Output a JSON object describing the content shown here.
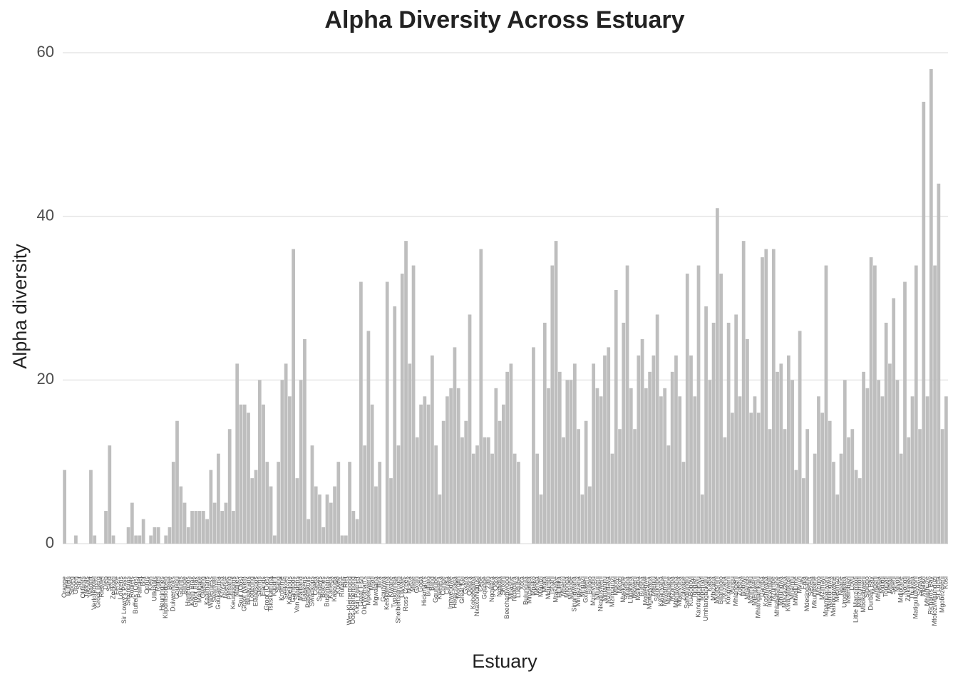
{
  "chart_data": {
    "type": "bar",
    "title": "Alpha Diversity Across Estuary",
    "x_label": "Estuary",
    "y_label": "Alpha diversity",
    "color": "#bebebe",
    "grid": true,
    "ylim": [
      0,
      60
    ],
    "yticks": [
      0,
      20,
      40,
      60
    ],
    "categories": [
      "Orange",
      "Buffels",
      "Spoeg",
      "Groen",
      "Sout",
      "Olifants",
      "Jakkals",
      "Wadrift",
      "Verlorenvlei",
      "Groot Berg",
      "Rietvlei",
      "Diep",
      "Sand",
      "Zeekoei",
      "Eerste",
      "Lourens",
      "Sir Lowry's Pass",
      "Steenbras",
      "Rooiels",
      "Buffels (Oos)",
      "Palmiet",
      "Bot",
      "Onrus",
      "Klein",
      "Uilkraals",
      "Ratel",
      "Heuningnes",
      "Klipdrifsfontein",
      "Breë",
      "Duiwenhoks",
      "Goukou",
      "Gourits",
      "Blinde",
      "Hartenbos",
      "Klein Brak",
      "Groot Brak",
      "Maalgate",
      "Gwaing",
      "Kaaimans",
      "Wilderness",
      "Swartvlei",
      "Goukamma",
      "Knysna",
      "Noetsie",
      "Piesang",
      "Keurbooms",
      "Matjies",
      "Sout (Oos)",
      "Groot (Wes)",
      "Bloukrans",
      "Lottering",
      "Elandsbos",
      "Storms",
      "Elands",
      "Groot (Oos)",
      "Tsitsikamma",
      "Klipdrif",
      "Slang",
      "Kromme",
      "Seekoei",
      "Kabeljous",
      "Gamtoos",
      "Van Stadens",
      "Maitland",
      "Baakens",
      "Papenkuils",
      "Swartkops",
      "Coega",
      "Sundays",
      "Boknes",
      "Bushmans",
      "Kariega",
      "Kasouga",
      "Kowie",
      "Rufane",
      "Riet",
      "Wes-Kleinemond",
      "Oos-Kleinemond",
      "Klein Palmiet",
      "Great Fish",
      "Old Woman's",
      "Mpekweni",
      "Mtati",
      "Mgwalana",
      "Bira",
      "Gqutywa",
      "Keiskamma",
      "Kiwane",
      "Tyolomnqa",
      "Shelbertsstroom",
      "Lilyvale",
      "Ross' Creek",
      "Ncera",
      "Mlele",
      "Gxulu",
      "Goda",
      "Hickman's",
      "Buffalo",
      "Blind",
      "Gqunube",
      "Kwelera",
      "Cunge",
      "Cintsa",
      "Imtwendwe",
      "Haga-haga",
      "Morgan",
      "Great Kei",
      "Gxara",
      "Qolora",
      "Kobonqaba",
      "Nxaxo/Ngqusi",
      "Cebe",
      "Gqunqe",
      "Zalu",
      "Ngqwara",
      "Qora",
      "Ngadla",
      "Shixini",
      "Beechamwood",
      "Mbashe",
      "Nqabara",
      "Ludube",
      "Xora",
      "Bulungula",
      "Mncwasa",
      "Mpako",
      "Nenga",
      "Mapuzi",
      "Mtata",
      "Mdumbi",
      "Tshani",
      "Mtakatye",
      "Hluleka",
      "Mnenu",
      "Mtonga",
      "Mpande",
      "Sinangwana",
      "Mngazana",
      "Mngazi",
      "Gxwaleni",
      "Bulolo",
      "Mzimvubu",
      "Ntlupeni",
      "Nkodusweni",
      "Mntafufu",
      "Mzintlava",
      "Mzimpunzi",
      "Mbotyi",
      "Mkozi",
      "Myekane",
      "Sitatsha",
      "Lupatana",
      "Mkweni",
      "Msikaba",
      "Butsha",
      "Mgwegwe",
      "Mgwetyana",
      "Mtentu",
      "Sikombe",
      "Kwanyana",
      "Mnyameni",
      "Mpahlane",
      "Mzamba",
      "Mtentwana",
      "Mtamvuna",
      "Zolwane",
      "Sandlundlu",
      "Ku-Boboyi",
      "Tongazi",
      "Kandandhlovu",
      "Mpenjati",
      "Umhlangankulu",
      "Kaba",
      "Mbizana",
      "Mvutshini",
      "Bilanhlolo",
      "Uvuzana",
      "Kongweni",
      "Vungu",
      "Mhlangeni",
      "Zotsha",
      "Boboyi",
      "Mbango",
      "Mzimkulu",
      "Mtentweni",
      "Mhlangamkulu",
      "Damba",
      "Koshwana",
      "Intshambili",
      "Mzumbe",
      "Mhlabatshane",
      "Mhlungwa",
      "Mfazazana",
      "Kwa-Makosi",
      "Mnamfu",
      "Mtwalume",
      "Mvuzi",
      "Fafa",
      "Mdesingane",
      "Sezela",
      "Mkumbane",
      "Mzinto",
      "Mzimayi",
      "Mpambanyoni",
      "Mahlongwa",
      "Mahlongwane",
      "Mkomazi",
      "Ngane",
      "Umgababa",
      "Msimbazi",
      "Lovu",
      "Little Manzimtoti",
      "Manzimtoti",
      "Mbokodweni",
      "Sipingo",
      "Durban Bay",
      "Mgeni",
      "Mhlanga",
      "Mdloti",
      "Tongati",
      "Mhlali",
      "Seteni",
      "Mvoti",
      "Mdlotane",
      "Nonoti",
      "Zinkwasi",
      "Thukela",
      "Matigulu/Nyoni",
      "Siyaya",
      "Mlalazi",
      "Mhlathuze",
      "Richards Bay",
      "Mfolozi/Msunduzi",
      "St Lucia",
      "Mgobezeleni",
      "Kosi"
    ],
    "values": [
      9,
      0,
      0,
      1,
      0,
      0,
      0,
      9,
      1,
      0,
      0,
      4,
      12,
      1,
      0,
      0,
      0,
      2,
      5,
      1,
      1,
      3,
      0,
      1,
      2,
      2,
      0,
      1,
      2,
      10,
      15,
      7,
      5,
      2,
      4,
      4,
      4,
      4,
      3,
      9,
      5,
      11,
      4,
      5,
      14,
      4,
      22,
      17,
      17,
      16,
      8,
      9,
      20,
      17,
      10,
      7,
      1,
      10,
      20,
      22,
      18,
      36,
      8,
      20,
      25,
      3,
      12,
      7,
      6,
      2,
      6,
      5,
      7,
      10,
      1,
      1,
      10,
      4,
      3,
      32,
      12,
      26,
      17,
      7,
      10,
      0,
      32,
      8,
      29,
      12,
      33,
      37,
      22,
      34,
      13,
      17,
      18,
      17,
      23,
      12,
      6,
      15,
      18,
      19,
      24,
      19,
      13,
      15,
      28,
      11,
      12,
      36,
      13,
      13,
      11,
      19,
      15,
      17,
      21,
      22,
      11,
      10,
      0,
      0,
      0,
      24,
      11,
      6,
      27,
      19,
      34,
      37,
      21,
      13,
      20,
      20,
      22,
      14,
      6,
      15,
      7,
      22,
      19,
      18,
      23,
      24,
      11,
      31,
      14,
      27,
      34,
      19,
      14,
      23,
      25,
      19,
      21,
      23,
      28,
      18,
      19,
      12,
      21,
      23,
      18,
      10,
      33,
      23,
      18,
      34,
      6,
      29,
      20,
      27,
      41,
      33,
      13,
      27,
      16,
      28,
      18,
      37,
      25,
      16,
      18,
      16,
      35,
      36,
      14,
      36,
      21,
      22,
      14,
      23,
      20,
      9,
      26,
      8,
      14,
      0,
      11,
      18,
      16,
      34,
      15,
      10,
      6,
      11,
      20,
      13,
      14,
      9,
      8,
      21,
      19,
      35,
      34,
      20,
      18,
      27,
      22,
      30,
      20,
      11,
      32,
      13,
      18,
      34,
      14,
      54,
      18,
      58,
      34,
      44,
      14,
      18
    ]
  }
}
